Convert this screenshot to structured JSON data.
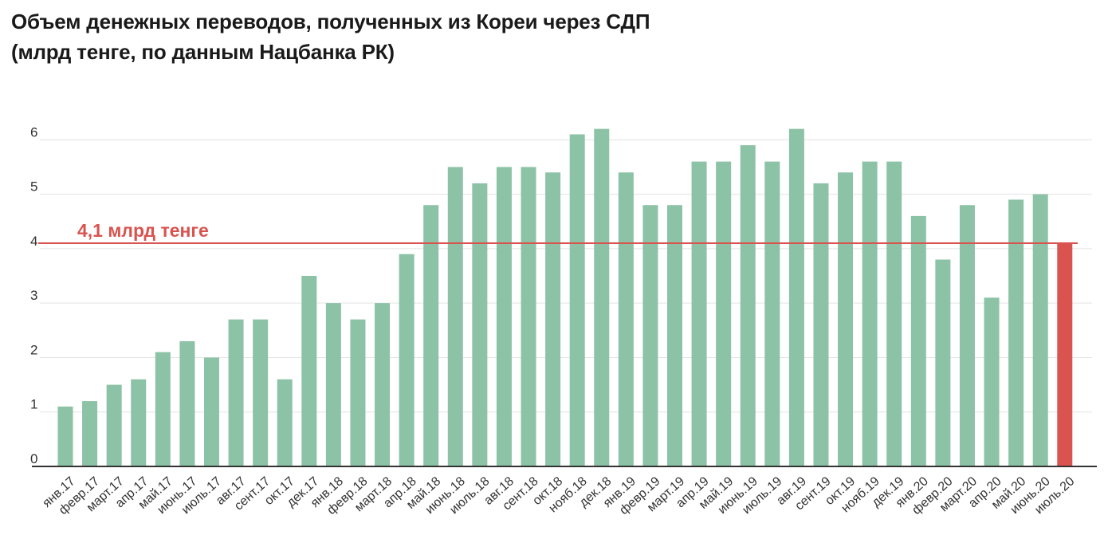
{
  "chart_data": {
    "type": "bar",
    "title": "Объем денежных переводов, полученных из Кореи через СДП",
    "subtitle": "(млрд тенге, по данным Нацбанка РК)",
    "categories": [
      "янв.17",
      "февр.17",
      "март.17",
      "апр.17",
      "май.17",
      "июнь.17",
      "июль.17",
      "авг.17",
      "сент.17",
      "окт.17",
      "дек.17",
      "янв.18",
      "февр.18",
      "март.18",
      "апр.18",
      "май.18",
      "июнь.18",
      "июль.18",
      "авг.18",
      "сент.18",
      "окт.18",
      "нояб.18",
      "дек.18",
      "янв.19",
      "февр.19",
      "март.19",
      "апр.19",
      "май.19",
      "июнь.19",
      "июль.19",
      "авг.19",
      "сент.19",
      "окт.19",
      "нояб.19",
      "дек.19",
      "янв.20",
      "февр.20",
      "март.20",
      "апр.20",
      "май.20",
      "июнь.20",
      "июль.20"
    ],
    "values": [
      1.1,
      1.2,
      1.5,
      1.6,
      2.1,
      2.3,
      2.0,
      2.7,
      2.7,
      1.6,
      3.5,
      3.0,
      2.7,
      3.0,
      3.9,
      4.8,
      5.5,
      5.2,
      5.5,
      5.5,
      5.4,
      6.1,
      6.2,
      5.4,
      4.8,
      4.8,
      5.6,
      5.6,
      5.9,
      5.6,
      6.2,
      5.2,
      5.4,
      5.6,
      5.6,
      4.6,
      3.8,
      4.8,
      3.1,
      4.9,
      5.0,
      4.1
    ],
    "yticks": [
      "0",
      "1",
      "2",
      "3",
      "4",
      "5",
      "6"
    ],
    "ylim": [
      0,
      6.4
    ],
    "grid": true,
    "highlight_index": 41,
    "reference_line": {
      "value": 4.1,
      "label": "4,1 млрд тенге"
    },
    "colors": {
      "bar": "#8cc2a6",
      "highlight": "#d9534f",
      "reference": "#d9534f",
      "grid": "#e3e3e3",
      "axis": "#333333"
    }
  }
}
